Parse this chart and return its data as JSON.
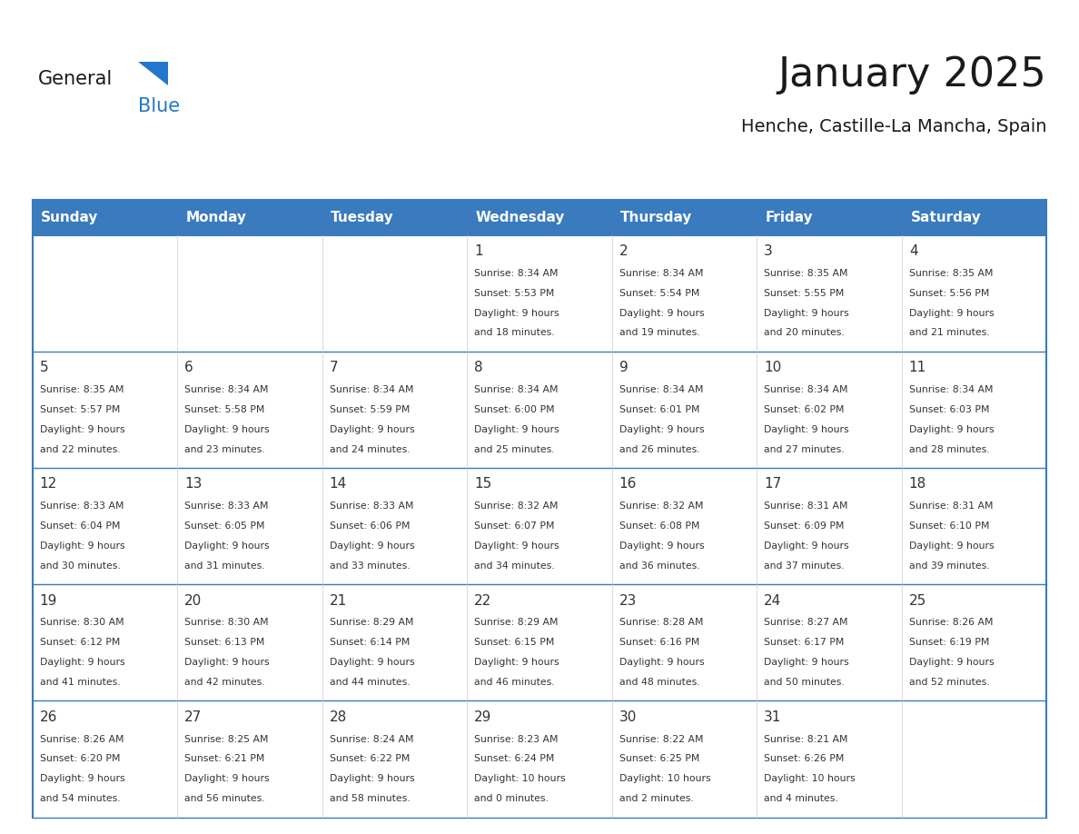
{
  "title": "January 2025",
  "subtitle": "Henche, Castille-La Mancha, Spain",
  "days_of_week": [
    "Sunday",
    "Monday",
    "Tuesday",
    "Wednesday",
    "Thursday",
    "Friday",
    "Saturday"
  ],
  "header_bg": "#3a7abf",
  "header_text": "#ffffff",
  "cell_bg_white": "#ffffff",
  "border_color": "#3a7abf",
  "row_border_color": "#3a7abf",
  "col_border_color": "#cccccc",
  "title_color": "#1a1a1a",
  "subtitle_color": "#1a1a1a",
  "text_color": "#333333",
  "logo_general_color": "#1a1a1a",
  "logo_blue_color": "#2277cc",
  "logo_triangle_color": "#2277cc",
  "calendar_data": [
    [
      {
        "day": null,
        "sunrise": null,
        "sunset": null,
        "daylight_line1": null,
        "daylight_line2": null
      },
      {
        "day": null,
        "sunrise": null,
        "sunset": null,
        "daylight_line1": null,
        "daylight_line2": null
      },
      {
        "day": null,
        "sunrise": null,
        "sunset": null,
        "daylight_line1": null,
        "daylight_line2": null
      },
      {
        "day": 1,
        "sunrise": "8:34 AM",
        "sunset": "5:53 PM",
        "daylight_line1": "Daylight: 9 hours",
        "daylight_line2": "and 18 minutes."
      },
      {
        "day": 2,
        "sunrise": "8:34 AM",
        "sunset": "5:54 PM",
        "daylight_line1": "Daylight: 9 hours",
        "daylight_line2": "and 19 minutes."
      },
      {
        "day": 3,
        "sunrise": "8:35 AM",
        "sunset": "5:55 PM",
        "daylight_line1": "Daylight: 9 hours",
        "daylight_line2": "and 20 minutes."
      },
      {
        "day": 4,
        "sunrise": "8:35 AM",
        "sunset": "5:56 PM",
        "daylight_line1": "Daylight: 9 hours",
        "daylight_line2": "and 21 minutes."
      }
    ],
    [
      {
        "day": 5,
        "sunrise": "8:35 AM",
        "sunset": "5:57 PM",
        "daylight_line1": "Daylight: 9 hours",
        "daylight_line2": "and 22 minutes."
      },
      {
        "day": 6,
        "sunrise": "8:34 AM",
        "sunset": "5:58 PM",
        "daylight_line1": "Daylight: 9 hours",
        "daylight_line2": "and 23 minutes."
      },
      {
        "day": 7,
        "sunrise": "8:34 AM",
        "sunset": "5:59 PM",
        "daylight_line1": "Daylight: 9 hours",
        "daylight_line2": "and 24 minutes."
      },
      {
        "day": 8,
        "sunrise": "8:34 AM",
        "sunset": "6:00 PM",
        "daylight_line1": "Daylight: 9 hours",
        "daylight_line2": "and 25 minutes."
      },
      {
        "day": 9,
        "sunrise": "8:34 AM",
        "sunset": "6:01 PM",
        "daylight_line1": "Daylight: 9 hours",
        "daylight_line2": "and 26 minutes."
      },
      {
        "day": 10,
        "sunrise": "8:34 AM",
        "sunset": "6:02 PM",
        "daylight_line1": "Daylight: 9 hours",
        "daylight_line2": "and 27 minutes."
      },
      {
        "day": 11,
        "sunrise": "8:34 AM",
        "sunset": "6:03 PM",
        "daylight_line1": "Daylight: 9 hours",
        "daylight_line2": "and 28 minutes."
      }
    ],
    [
      {
        "day": 12,
        "sunrise": "8:33 AM",
        "sunset": "6:04 PM",
        "daylight_line1": "Daylight: 9 hours",
        "daylight_line2": "and 30 minutes."
      },
      {
        "day": 13,
        "sunrise": "8:33 AM",
        "sunset": "6:05 PM",
        "daylight_line1": "Daylight: 9 hours",
        "daylight_line2": "and 31 minutes."
      },
      {
        "day": 14,
        "sunrise": "8:33 AM",
        "sunset": "6:06 PM",
        "daylight_line1": "Daylight: 9 hours",
        "daylight_line2": "and 33 minutes."
      },
      {
        "day": 15,
        "sunrise": "8:32 AM",
        "sunset": "6:07 PM",
        "daylight_line1": "Daylight: 9 hours",
        "daylight_line2": "and 34 minutes."
      },
      {
        "day": 16,
        "sunrise": "8:32 AM",
        "sunset": "6:08 PM",
        "daylight_line1": "Daylight: 9 hours",
        "daylight_line2": "and 36 minutes."
      },
      {
        "day": 17,
        "sunrise": "8:31 AM",
        "sunset": "6:09 PM",
        "daylight_line1": "Daylight: 9 hours",
        "daylight_line2": "and 37 minutes."
      },
      {
        "day": 18,
        "sunrise": "8:31 AM",
        "sunset": "6:10 PM",
        "daylight_line1": "Daylight: 9 hours",
        "daylight_line2": "and 39 minutes."
      }
    ],
    [
      {
        "day": 19,
        "sunrise": "8:30 AM",
        "sunset": "6:12 PM",
        "daylight_line1": "Daylight: 9 hours",
        "daylight_line2": "and 41 minutes."
      },
      {
        "day": 20,
        "sunrise": "8:30 AM",
        "sunset": "6:13 PM",
        "daylight_line1": "Daylight: 9 hours",
        "daylight_line2": "and 42 minutes."
      },
      {
        "day": 21,
        "sunrise": "8:29 AM",
        "sunset": "6:14 PM",
        "daylight_line1": "Daylight: 9 hours",
        "daylight_line2": "and 44 minutes."
      },
      {
        "day": 22,
        "sunrise": "8:29 AM",
        "sunset": "6:15 PM",
        "daylight_line1": "Daylight: 9 hours",
        "daylight_line2": "and 46 minutes."
      },
      {
        "day": 23,
        "sunrise": "8:28 AM",
        "sunset": "6:16 PM",
        "daylight_line1": "Daylight: 9 hours",
        "daylight_line2": "and 48 minutes."
      },
      {
        "day": 24,
        "sunrise": "8:27 AM",
        "sunset": "6:17 PM",
        "daylight_line1": "Daylight: 9 hours",
        "daylight_line2": "and 50 minutes."
      },
      {
        "day": 25,
        "sunrise": "8:26 AM",
        "sunset": "6:19 PM",
        "daylight_line1": "Daylight: 9 hours",
        "daylight_line2": "and 52 minutes."
      }
    ],
    [
      {
        "day": 26,
        "sunrise": "8:26 AM",
        "sunset": "6:20 PM",
        "daylight_line1": "Daylight: 9 hours",
        "daylight_line2": "and 54 minutes."
      },
      {
        "day": 27,
        "sunrise": "8:25 AM",
        "sunset": "6:21 PM",
        "daylight_line1": "Daylight: 9 hours",
        "daylight_line2": "and 56 minutes."
      },
      {
        "day": 28,
        "sunrise": "8:24 AM",
        "sunset": "6:22 PM",
        "daylight_line1": "Daylight: 9 hours",
        "daylight_line2": "and 58 minutes."
      },
      {
        "day": 29,
        "sunrise": "8:23 AM",
        "sunset": "6:24 PM",
        "daylight_line1": "Daylight: 10 hours",
        "daylight_line2": "and 0 minutes."
      },
      {
        "day": 30,
        "sunrise": "8:22 AM",
        "sunset": "6:25 PM",
        "daylight_line1": "Daylight: 10 hours",
        "daylight_line2": "and 2 minutes."
      },
      {
        "day": 31,
        "sunrise": "8:21 AM",
        "sunset": "6:26 PM",
        "daylight_line1": "Daylight: 10 hours",
        "daylight_line2": "and 4 minutes."
      },
      {
        "day": null,
        "sunrise": null,
        "sunset": null,
        "daylight_line1": null,
        "daylight_line2": null
      }
    ]
  ]
}
